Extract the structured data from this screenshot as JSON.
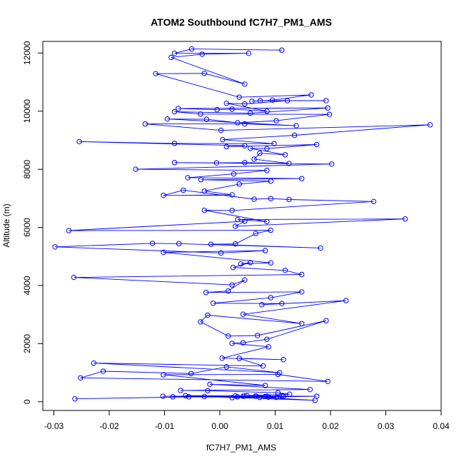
{
  "chart_data": {
    "type": "scatter",
    "title": "ATOM2 Southbound fC7H7_PM1_AMS",
    "xlabel": "fC7H7_PM1_AMS",
    "ylabel": "Altitude (m)",
    "xlim": [
      -0.032,
      0.04
    ],
    "ylim": [
      -300,
      12400
    ],
    "xticks": [
      -0.03,
      -0.02,
      -0.01,
      0.0,
      0.01,
      0.02,
      0.03,
      0.04
    ],
    "xtick_labels": [
      "-0.03",
      "-0.02",
      "-0.01",
      "0.00",
      "0.01",
      "0.02",
      "0.03",
      "0.04"
    ],
    "yticks": [
      0,
      2000,
      4000,
      6000,
      8000,
      10000,
      12000
    ],
    "ytick_labels": [
      "0",
      "2000",
      "4000",
      "6000",
      "8000",
      "10000",
      "12000"
    ],
    "grid": false,
    "legend": "none",
    "series_color": "#0000ff",
    "points": [
      [
        -0.0262,
        100
      ],
      [
        0.0045,
        200
      ],
      [
        0.0102,
        150
      ],
      [
        -0.0085,
        170
      ],
      [
        0.0115,
        190
      ],
      [
        0.0082,
        180
      ],
      [
        -0.0062,
        210
      ],
      [
        0.0175,
        190
      ],
      [
        0.0022,
        140
      ],
      [
        0.0112,
        200
      ],
      [
        0.0088,
        160
      ],
      [
        -0.0028,
        180
      ],
      [
        0.0172,
        50
      ],
      [
        0.0072,
        150
      ],
      [
        0.0032,
        170
      ],
      [
        0.0065,
        190
      ],
      [
        -0.0056,
        170
      ],
      [
        0.0042,
        190
      ],
      [
        -0.0103,
        190
      ],
      [
        0.0028,
        200
      ],
      [
        0.0085,
        190
      ],
      [
        0.0065,
        200
      ],
      [
        0.0049,
        210
      ],
      [
        0.0126,
        260
      ],
      [
        0.0105,
        310
      ],
      [
        -0.0022,
        380
      ],
      [
        -0.0071,
        390
      ],
      [
        0.0163,
        420
      ],
      [
        -0.0018,
        600
      ],
      [
        0.0082,
        560
      ],
      [
        -0.0102,
        930
      ],
      [
        0.0105,
        940
      ],
      [
        0.0195,
        700
      ],
      [
        -0.0252,
        820
      ],
      [
        -0.0211,
        1050
      ],
      [
        -0.0052,
        970
      ],
      [
        0.0012,
        1200
      ],
      [
        0.0108,
        1000
      ],
      [
        -0.0228,
        1330
      ],
      [
        0.0078,
        1230
      ],
      [
        0.0035,
        1490
      ],
      [
        0.0115,
        1450
      ],
      [
        0.0004,
        1500
      ],
      [
        0.0088,
        1890
      ],
      [
        0.0022,
        2010
      ],
      [
        0.0042,
        2030
      ],
      [
        0.0085,
        2150
      ],
      [
        0.0192,
        2790
      ],
      [
        0.0068,
        2280
      ],
      [
        0.0015,
        2260
      ],
      [
        -0.0035,
        2750
      ],
      [
        -0.0022,
        2980
      ],
      [
        0.0148,
        2690
      ],
      [
        0.0042,
        3010
      ],
      [
        0.0228,
        3480
      ],
      [
        0.0076,
        3340
      ],
      [
        0.0112,
        3380
      ],
      [
        -0.0012,
        3390
      ],
      [
        0.0092,
        3580
      ],
      [
        0.0148,
        3780
      ],
      [
        -0.0025,
        3760
      ],
      [
        0.0015,
        3810
      ],
      [
        0.0045,
        4190
      ],
      [
        0.0022,
        4020
      ],
      [
        -0.0264,
        4280
      ],
      [
        0.0148,
        4380
      ],
      [
        0.0118,
        4520
      ],
      [
        0.0024,
        4620
      ],
      [
        0.0055,
        4790
      ],
      [
        0.0038,
        4740
      ],
      [
        0.0092,
        4780
      ],
      [
        -0.0102,
        5140
      ],
      [
        0.0082,
        5200
      ],
      [
        0.0002,
        5120
      ],
      [
        -0.0298,
        5330
      ],
      [
        -0.0122,
        5450
      ],
      [
        -0.0074,
        5440
      ],
      [
        0.0182,
        5290
      ],
      [
        -0.0016,
        5420
      ],
      [
        0.0028,
        5430
      ],
      [
        0.0065,
        5790
      ],
      [
        0.0092,
        5900
      ],
      [
        -0.0273,
        5890
      ],
      [
        0.0045,
        6210
      ],
      [
        0.0028,
        6040
      ],
      [
        0.0335,
        6290
      ],
      [
        0.0032,
        6270
      ],
      [
        0.0085,
        6200
      ],
      [
        -0.0028,
        6590
      ],
      [
        0.0022,
        6580
      ],
      [
        0.0278,
        6890
      ],
      [
        0.0125,
        6960
      ],
      [
        0.0092,
        6990
      ],
      [
        0.0062,
        6970
      ],
      [
        -0.0066,
        7280
      ],
      [
        -0.0102,
        7100
      ],
      [
        0.0022,
        7120
      ],
      [
        -0.0028,
        7250
      ],
      [
        0.0035,
        7490
      ],
      [
        0.0092,
        7590
      ],
      [
        -0.0034,
        7640
      ],
      [
        0.0148,
        7680
      ],
      [
        -0.0058,
        7710
      ],
      [
        0.0025,
        7840
      ],
      [
        0.0085,
        7960
      ],
      [
        -0.0152,
        8000
      ],
      [
        0.0202,
        8180
      ],
      [
        -0.0082,
        8230
      ],
      [
        -0.0006,
        8220
      ],
      [
        0.0045,
        8230
      ],
      [
        0.0125,
        8200
      ],
      [
        0.0062,
        8350
      ],
      [
        0.0072,
        8550
      ],
      [
        0.0118,
        8500
      ],
      [
        0.0055,
        8720
      ],
      [
        0.0085,
        8710
      ],
      [
        0.0175,
        8850
      ],
      [
        0.0012,
        8780
      ],
      [
        0.0045,
        8810
      ],
      [
        -0.0254,
        8950
      ],
      [
        -0.0082,
        8890
      ],
      [
        0.0098,
        8880
      ],
      [
        0.0005,
        9020
      ],
      [
        0.0135,
        9170
      ],
      [
        0.038,
        9530
      ],
      [
        0.0002,
        9340
      ],
      [
        -0.0135,
        9560
      ],
      [
        0.0045,
        9560
      ],
      [
        0.0138,
        9500
      ],
      [
        -0.0095,
        9730
      ],
      [
        -0.0024,
        9720
      ],
      [
        0.0032,
        9600
      ],
      [
        0.0102,
        9670
      ],
      [
        0.0198,
        9890
      ],
      [
        -0.0035,
        9900
      ],
      [
        -0.0082,
        9980
      ],
      [
        0.0055,
        9930
      ],
      [
        0.0195,
        10110
      ],
      [
        -0.0075,
        10090
      ],
      [
        -0.0005,
        10050
      ],
      [
        0.0022,
        10070
      ],
      [
        0.0085,
        10000
      ],
      [
        0.0012,
        10270
      ],
      [
        0.0045,
        10250
      ],
      [
        0.0122,
        10360
      ],
      [
        0.0192,
        10360
      ],
      [
        0.0073,
        10360
      ],
      [
        0.0058,
        10340
      ],
      [
        0.0095,
        10380
      ],
      [
        0.0165,
        10560
      ],
      [
        0.0035,
        10480
      ],
      [
        -0.0116,
        11290
      ],
      [
        -0.0028,
        11300
      ],
      [
        0.0045,
        10930
      ],
      [
        -0.0088,
        11850
      ],
      [
        -0.0032,
        11960
      ],
      [
        0.0052,
        11990
      ],
      [
        -0.0082,
        11990
      ],
      [
        -0.0051,
        12140
      ],
      [
        0.0112,
        12100
      ]
    ]
  }
}
